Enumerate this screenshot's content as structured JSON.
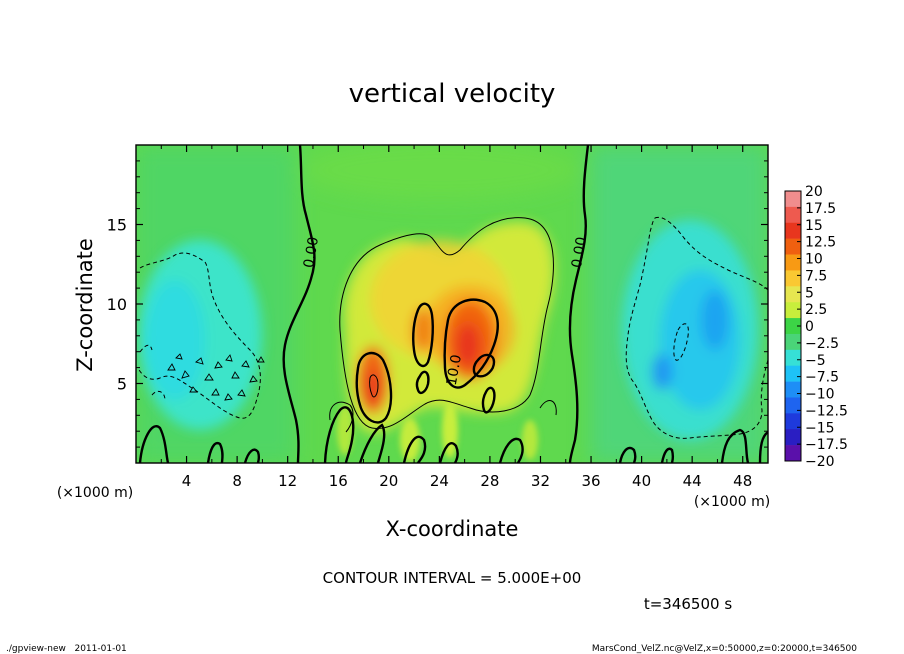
{
  "chart_data": {
    "type": "heatmap",
    "title": "vertical velocity",
    "xlabel": "X-coordinate",
    "ylabel": "Z-coordinate",
    "x_unit_left": "(×1000 m)",
    "x_unit_right": "(×1000 m)",
    "xlim": [
      0,
      50
    ],
    "ylim": [
      0,
      20
    ],
    "x_ticks": [
      4,
      8,
      12,
      16,
      20,
      24,
      28,
      32,
      36,
      40,
      44,
      48
    ],
    "y_ticks": [
      5,
      10,
      15
    ],
    "contour_interval_text": "CONTOUR INTERVAL = 5.000E+00",
    "time_text": "t=346500 s",
    "contour_labels": [
      {
        "text": "0.00",
        "x": 14.2,
        "y": 13.2
      },
      {
        "text": "0.00",
        "x": 35.4,
        "y": 13.2
      },
      {
        "text": "10.0",
        "x": 25.5,
        "y": 5.8
      }
    ],
    "colorbar": {
      "levels": [
        20,
        17.5,
        15,
        12.5,
        10,
        7.5,
        5,
        2.5,
        0,
        -2.5,
        -5,
        -7.5,
        -10,
        -12.5,
        -15,
        -17.5,
        -20
      ],
      "labels": [
        "20",
        "17.5",
        "15",
        "12.5",
        "10",
        "7.5",
        "5",
        "2.5",
        "0",
        "−2.5",
        "−5",
        "−7.5",
        "−10",
        "−12.5",
        "−15",
        "−17.5",
        "−20"
      ],
      "colors": [
        "#f08d8d",
        "#ee5a4f",
        "#e8361e",
        "#f06010",
        "#f89a14",
        "#fac832",
        "#e6e650",
        "#c8ee3c",
        "#3cd446",
        "#4ad478",
        "#36e0d6",
        "#1ec2f6",
        "#1e8ef6",
        "#1e64f0",
        "#1e3adc",
        "#2a1ec2",
        "#5a10aa"
      ]
    },
    "features": [
      {
        "name": "updraft-envelope",
        "value": 5,
        "x": [
          15,
          31
        ],
        "y": [
          1.5,
          15
        ]
      },
      {
        "name": "updraft-core-left",
        "value": 12,
        "x": 18.8,
        "y": 5.5
      },
      {
        "name": "updraft-core-center",
        "value": 13,
        "x": 26,
        "y": 7.5
      },
      {
        "name": "downdraft-left",
        "value": -6,
        "x": [
          1,
          10
        ],
        "y": [
          3,
          13
        ]
      },
      {
        "name": "downdraft-right",
        "value": -8,
        "x": [
          39,
          48
        ],
        "y": [
          2,
          15
        ]
      }
    ]
  },
  "footer": {
    "left": "./gpview-new   2011-01-01",
    "right": "MarsCond_VelZ.nc@VelZ,x=0:50000,z=0:20000,t=346500"
  }
}
